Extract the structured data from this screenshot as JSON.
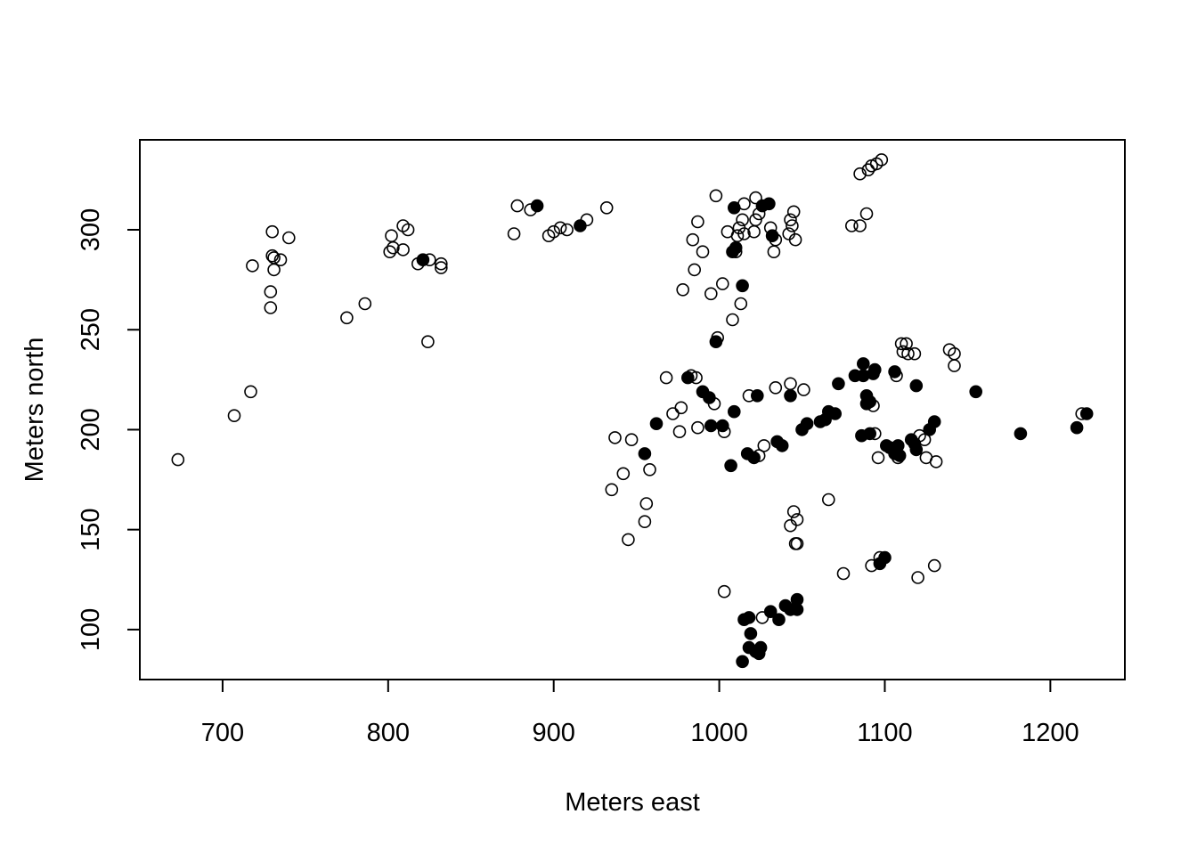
{
  "chart_data": {
    "type": "scatter",
    "title": "",
    "xlabel": "Meters east",
    "ylabel": "Meters north",
    "xlim": [
      650,
      1245
    ],
    "ylim": [
      75,
      345
    ],
    "x_ticks": [
      700,
      800,
      900,
      1000,
      1100,
      1200
    ],
    "x_tick_labels": [
      "700",
      "800",
      "900",
      "1000",
      "1100",
      "1200"
    ],
    "y_ticks": [
      100,
      150,
      200,
      250,
      300
    ],
    "y_tick_labels": [
      "100",
      "150",
      "200",
      "250",
      "300"
    ],
    "grid": false,
    "legend": "none",
    "series": [
      {
        "marker": "open-circle",
        "points": [
          [
            673,
            185
          ],
          [
            707,
            207
          ],
          [
            717,
            219
          ],
          [
            718,
            282
          ],
          [
            729,
            269
          ],
          [
            729,
            261
          ],
          [
            730,
            299
          ],
          [
            730,
            287
          ],
          [
            731,
            280
          ],
          [
            731,
            286
          ],
          [
            735,
            285
          ],
          [
            740,
            296
          ],
          [
            775,
            256
          ],
          [
            786,
            263
          ],
          [
            801,
            289
          ],
          [
            802,
            297
          ],
          [
            803,
            291
          ],
          [
            809,
            302
          ],
          [
            809,
            290
          ],
          [
            812,
            300
          ],
          [
            818,
            283
          ],
          [
            824,
            244
          ],
          [
            825,
            285
          ],
          [
            832,
            283
          ],
          [
            832,
            281
          ],
          [
            876,
            298
          ],
          [
            878,
            312
          ],
          [
            886,
            310
          ],
          [
            897,
            297
          ],
          [
            900,
            299
          ],
          [
            904,
            301
          ],
          [
            908,
            300
          ],
          [
            920,
            305
          ],
          [
            932,
            311
          ],
          [
            935,
            170
          ],
          [
            937,
            196
          ],
          [
            942,
            178
          ],
          [
            945,
            145
          ],
          [
            947,
            195
          ],
          [
            955,
            154
          ],
          [
            956,
            163
          ],
          [
            958,
            180
          ],
          [
            968,
            226
          ],
          [
            972,
            208
          ],
          [
            976,
            199
          ],
          [
            977,
            211
          ],
          [
            978,
            270
          ],
          [
            983,
            227
          ],
          [
            984,
            295
          ],
          [
            985,
            280
          ],
          [
            986,
            226
          ],
          [
            987,
            304
          ],
          [
            987,
            201
          ],
          [
            990,
            289
          ],
          [
            995,
            268
          ],
          [
            997,
            213
          ],
          [
            998,
            317
          ],
          [
            999,
            246
          ],
          [
            1002,
            273
          ],
          [
            1003,
            199
          ],
          [
            1003,
            119
          ],
          [
            1005,
            299
          ],
          [
            1008,
            255
          ],
          [
            1010,
            289
          ],
          [
            1011,
            297
          ],
          [
            1012,
            301
          ],
          [
            1013,
            263
          ],
          [
            1014,
            305
          ],
          [
            1015,
            298
          ],
          [
            1015,
            313
          ],
          [
            1018,
            217
          ],
          [
            1021,
            299
          ],
          [
            1022,
            316
          ],
          [
            1022,
            305
          ],
          [
            1024,
            308
          ],
          [
            1024,
            187
          ],
          [
            1026,
            106
          ],
          [
            1027,
            192
          ],
          [
            1031,
            301
          ],
          [
            1033,
            289
          ],
          [
            1034,
            221
          ],
          [
            1034,
            295
          ],
          [
            1042,
            298
          ],
          [
            1043,
            305
          ],
          [
            1043,
            223
          ],
          [
            1044,
            302
          ],
          [
            1045,
            309
          ],
          [
            1045,
            159
          ],
          [
            1046,
            295
          ],
          [
            1046,
            143
          ],
          [
            1047,
            155
          ],
          [
            1047,
            143
          ],
          [
            1043,
            152
          ],
          [
            1051,
            220
          ],
          [
            1066,
            165
          ],
          [
            1075,
            128
          ],
          [
            1080,
            302
          ],
          [
            1085,
            302
          ],
          [
            1085,
            328
          ],
          [
            1089,
            308
          ],
          [
            1090,
            330
          ],
          [
            1092,
            332
          ],
          [
            1092,
            132
          ],
          [
            1093,
            212
          ],
          [
            1094,
            198
          ],
          [
            1095,
            333
          ],
          [
            1096,
            186
          ],
          [
            1097,
            136
          ],
          [
            1098,
            335
          ],
          [
            1107,
            227
          ],
          [
            1108,
            186
          ],
          [
            1110,
            243
          ],
          [
            1111,
            239
          ],
          [
            1113,
            243
          ],
          [
            1114,
            238
          ],
          [
            1118,
            238
          ],
          [
            1120,
            126
          ],
          [
            1121,
            197
          ],
          [
            1124,
            195
          ],
          [
            1125,
            186
          ],
          [
            1130,
            132
          ],
          [
            1131,
            184
          ],
          [
            1139,
            240
          ],
          [
            1142,
            238
          ],
          [
            1142,
            232
          ],
          [
            1219,
            208
          ]
        ]
      },
      {
        "marker": "filled-circle",
        "points": [
          [
            821,
            285
          ],
          [
            890,
            312
          ],
          [
            916,
            302
          ],
          [
            955,
            188
          ],
          [
            962,
            203
          ],
          [
            981,
            226
          ],
          [
            990,
            219
          ],
          [
            994,
            216
          ],
          [
            995,
            202
          ],
          [
            998,
            244
          ],
          [
            1002,
            202
          ],
          [
            1007,
            182
          ],
          [
            1008,
            289
          ],
          [
            1009,
            311
          ],
          [
            1009,
            209
          ],
          [
            1010,
            291
          ],
          [
            1014,
            272
          ],
          [
            1014,
            84
          ],
          [
            1015,
            105
          ],
          [
            1017,
            188
          ],
          [
            1018,
            106
          ],
          [
            1018,
            91
          ],
          [
            1019,
            98
          ],
          [
            1021,
            186
          ],
          [
            1022,
            89
          ],
          [
            1023,
            217
          ],
          [
            1024,
            88
          ],
          [
            1025,
            91
          ],
          [
            1026,
            312
          ],
          [
            1030,
            313
          ],
          [
            1031,
            109
          ],
          [
            1032,
            297
          ],
          [
            1035,
            194
          ],
          [
            1036,
            105
          ],
          [
            1038,
            192
          ],
          [
            1040,
            112
          ],
          [
            1043,
            110
          ],
          [
            1043,
            217
          ],
          [
            1047,
            115
          ],
          [
            1047,
            110
          ],
          [
            1050,
            200
          ],
          [
            1053,
            203
          ],
          [
            1061,
            204
          ],
          [
            1064,
            205
          ],
          [
            1066,
            209
          ],
          [
            1070,
            208
          ],
          [
            1072,
            223
          ],
          [
            1082,
            227
          ],
          [
            1086,
            197
          ],
          [
            1087,
            227
          ],
          [
            1087,
            233
          ],
          [
            1089,
            213
          ],
          [
            1089,
            217
          ],
          [
            1091,
            214
          ],
          [
            1091,
            198
          ],
          [
            1093,
            228
          ],
          [
            1094,
            230
          ],
          [
            1097,
            133
          ],
          [
            1100,
            136
          ],
          [
            1101,
            192
          ],
          [
            1103,
            191
          ],
          [
            1106,
            229
          ],
          [
            1106,
            188
          ],
          [
            1108,
            192
          ],
          [
            1109,
            187
          ],
          [
            1116,
            195
          ],
          [
            1118,
            193
          ],
          [
            1119,
            190
          ],
          [
            1119,
            222
          ],
          [
            1127,
            200
          ],
          [
            1130,
            204
          ],
          [
            1155,
            219
          ],
          [
            1182,
            198
          ],
          [
            1216,
            201
          ],
          [
            1222,
            208
          ]
        ]
      }
    ]
  }
}
